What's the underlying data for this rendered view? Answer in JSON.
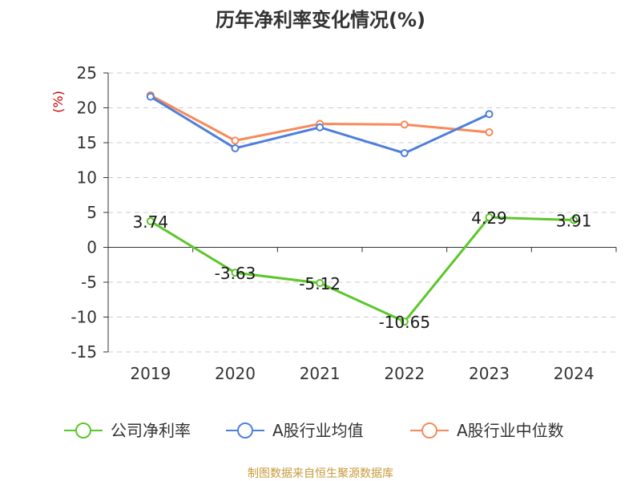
{
  "chart_data": {
    "type": "line",
    "title": "历年净利率变化情况(%)",
    "ylabel": "(%)",
    "categories": [
      "2019",
      "2020",
      "2021",
      "2022",
      "2023",
      "2024"
    ],
    "ylim": [
      -15,
      25
    ],
    "yticks": [
      25,
      20,
      15,
      10,
      5,
      0,
      -5,
      -10,
      -15
    ],
    "grid": true,
    "legend_position": "bottom",
    "series": [
      {
        "name": "公司净利率",
        "color": "#5cc72a",
        "show_labels": true,
        "values": [
          3.74,
          -3.63,
          -5.12,
          -10.65,
          4.29,
          3.91
        ],
        "labels": [
          "3.74",
          "-3.63",
          "-5.12",
          "-10.65",
          "4.29",
          "3.91"
        ]
      },
      {
        "name": "A股行业均值",
        "color": "#4f7fdc",
        "show_labels": false,
        "values": [
          21.6,
          14.2,
          17.2,
          13.5,
          19.1,
          null
        ]
      },
      {
        "name": "A股行业中位数",
        "color": "#f78a5a",
        "show_labels": false,
        "values": [
          21.8,
          15.3,
          17.7,
          17.6,
          16.5,
          null
        ]
      }
    ]
  },
  "colors": {
    "title": "#333333",
    "unit": "#cc0000",
    "source": "#c79a3a",
    "grid": "#cccccc",
    "axis": "#333333"
  },
  "source": "制图数据来自恒生聚源数据库"
}
